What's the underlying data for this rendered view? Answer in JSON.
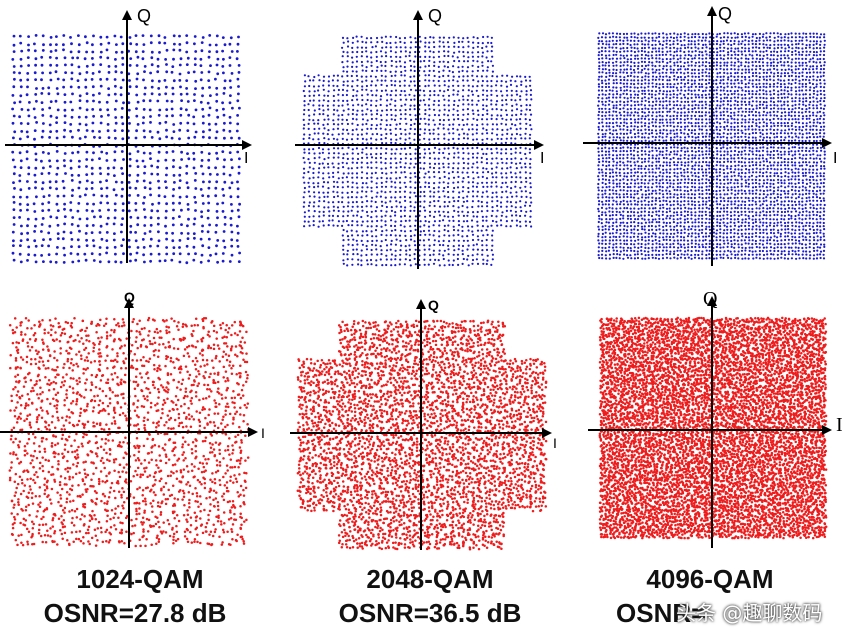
{
  "figure": {
    "description_labels": {
      "axis_i": "I",
      "axis_q": "Q"
    },
    "colors": {
      "simulated": "#1a1ad0",
      "measured": "#ee1c1c",
      "axis": "#000000"
    },
    "panels": [
      {
        "id": "1024-sim",
        "modulation": "1024-QAM",
        "grid": 32,
        "shape": "square",
        "row": "simulated"
      },
      {
        "id": "2048-sim",
        "modulation": "2048-QAM",
        "grid": 48,
        "shape": "cross",
        "row": "simulated"
      },
      {
        "id": "4096-sim",
        "modulation": "4096-QAM",
        "grid": 64,
        "shape": "square",
        "row": "simulated"
      },
      {
        "id": "1024-meas",
        "modulation": "1024-QAM",
        "grid": 32,
        "shape": "square",
        "row": "measured"
      },
      {
        "id": "2048-meas",
        "modulation": "2048-QAM",
        "grid": 48,
        "shape": "cross",
        "row": "measured"
      },
      {
        "id": "4096-meas",
        "modulation": "4096-QAM",
        "grid": 64,
        "shape": "square",
        "row": "measured"
      }
    ],
    "captions": [
      {
        "modulation": "1024-QAM",
        "osnr": "OSNR=27.8 dB"
      },
      {
        "modulation": "2048-QAM",
        "osnr": "OSNR=36.5 dB"
      },
      {
        "modulation": "4096-QAM",
        "osnr": "OSNR="
      }
    ],
    "watermark": "头条 @趣聊数码"
  }
}
